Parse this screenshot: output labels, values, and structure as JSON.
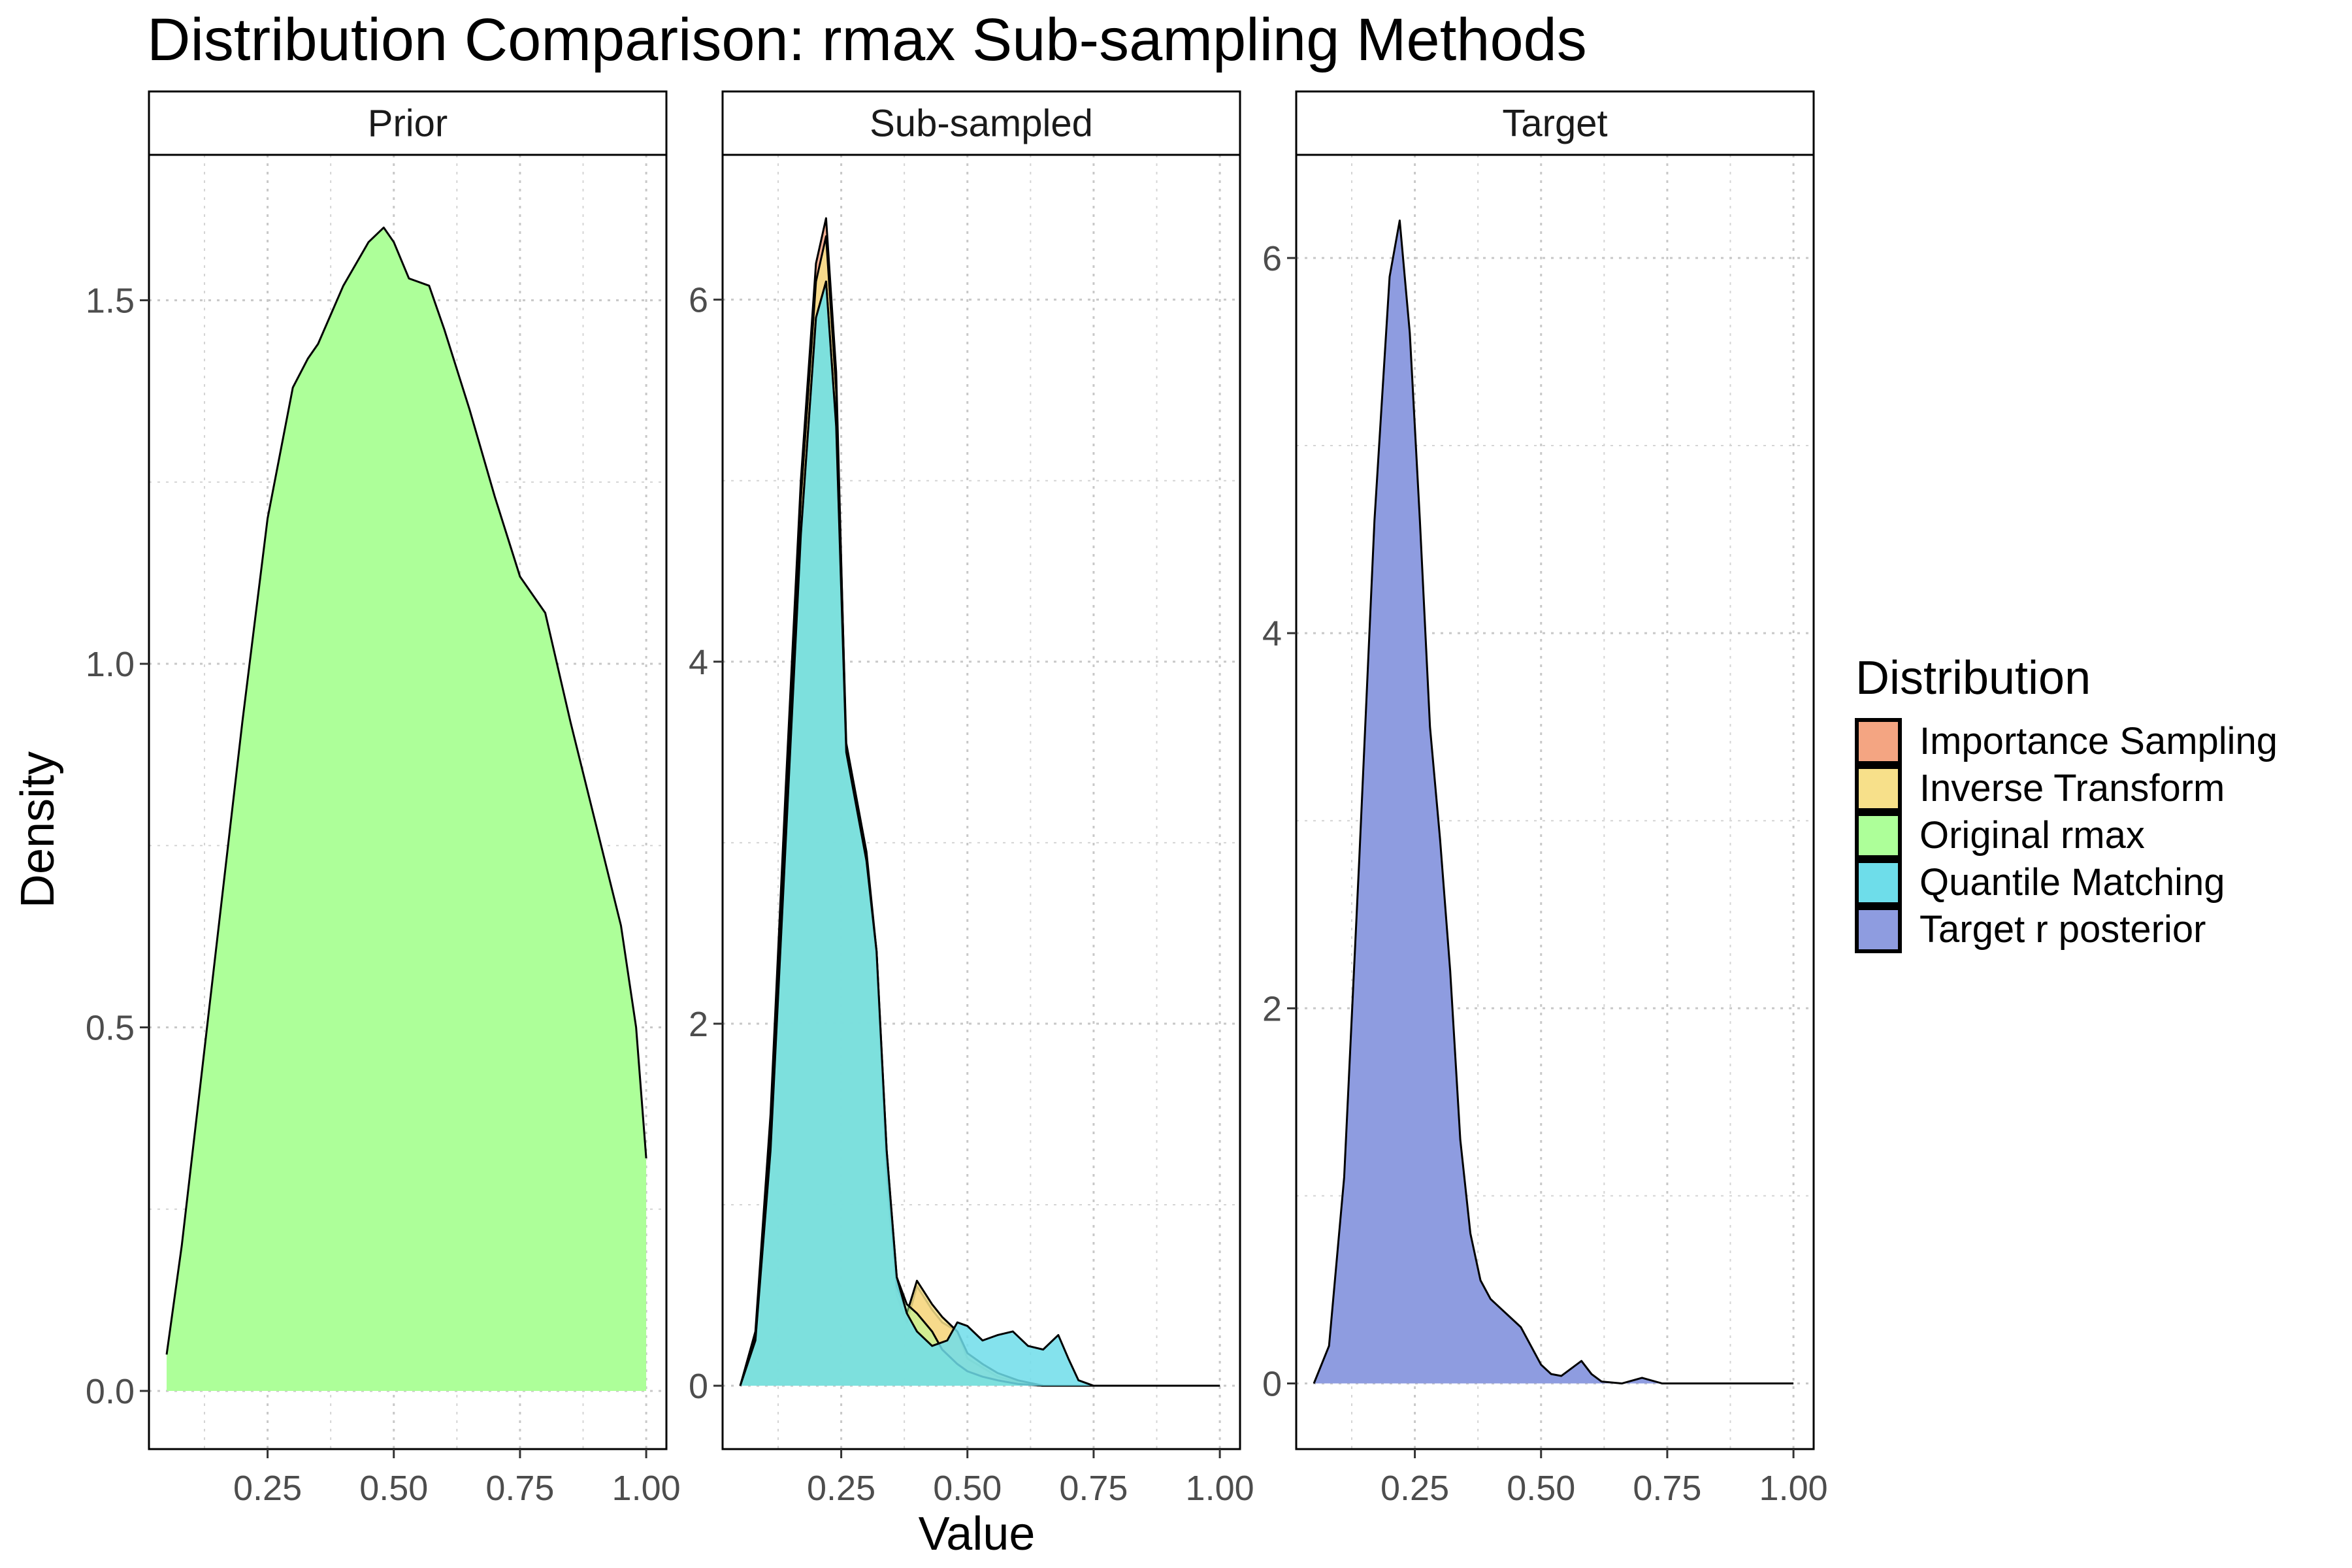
{
  "chart_data": {
    "type": "area",
    "title": "Distribution Comparison: rmax Sub-sampling Methods",
    "xlabel": "Value",
    "ylabel": "Density",
    "grid": true,
    "legend": {
      "title": "Distribution",
      "position": "right",
      "entries": [
        {
          "name": "Importance Sampling",
          "color": "#F4A582"
        },
        {
          "name": "Inverse Transform",
          "color": "#F7E08A"
        },
        {
          "name": "Original rmax",
          "color": "#ADFF99"
        },
        {
          "name": "Quantile Matching",
          "color": "#6EDDEA"
        },
        {
          "name": "Target r posterior",
          "color": "#8E9CE0"
        }
      ]
    },
    "facets": [
      {
        "label": "Prior",
        "xlim": [
          0.015,
          1.04
        ],
        "ylim": [
          -0.08,
          1.7
        ],
        "xticks": [
          0.25,
          0.5,
          0.75,
          1.0
        ],
        "xtick_labels": [
          "0.25",
          "0.50",
          "0.75",
          "1.00"
        ],
        "yticks": [
          0,
          0.5,
          1.0,
          1.5
        ],
        "ytick_labels": [
          "0.0",
          "0.5",
          "1.0",
          "1.5"
        ],
        "series": [
          {
            "name": "Original rmax",
            "color": "#ADFF99",
            "opacity": 1.0,
            "x": [
              0.05,
              0.08,
              0.11,
              0.15,
              0.2,
              0.25,
              0.3,
              0.33,
              0.35,
              0.4,
              0.45,
              0.48,
              0.5,
              0.53,
              0.57,
              0.6,
              0.65,
              0.7,
              0.75,
              0.8,
              0.85,
              0.9,
              0.95,
              0.98,
              1.0
            ],
            "y": [
              0.05,
              0.2,
              0.38,
              0.62,
              0.92,
              1.2,
              1.38,
              1.42,
              1.44,
              1.52,
              1.58,
              1.6,
              1.58,
              1.53,
              1.52,
              1.46,
              1.35,
              1.23,
              1.12,
              1.07,
              0.92,
              0.78,
              0.64,
              0.5,
              0.32
            ]
          }
        ]
      },
      {
        "label": "Sub-sampled",
        "xlim": [
          0.015,
          1.04
        ],
        "ylim": [
          -0.35,
          6.8
        ],
        "xticks": [
          0.25,
          0.5,
          0.75,
          1.0
        ],
        "xtick_labels": [
          "0.25",
          "0.50",
          "0.75",
          "1.00"
        ],
        "yticks": [
          0,
          2,
          4,
          6
        ],
        "ytick_labels": [
          "0",
          "2",
          "4",
          "6"
        ],
        "series": [
          {
            "name": "Importance Sampling",
            "color": "#F4A582",
            "opacity": 0.85,
            "x": [
              0.05,
              0.08,
              0.11,
              0.14,
              0.17,
              0.2,
              0.22,
              0.24,
              0.26,
              0.28,
              0.3,
              0.32,
              0.34,
              0.36,
              0.38,
              0.4,
              0.43,
              0.45,
              0.48,
              0.5,
              0.53,
              0.56,
              0.6,
              0.65,
              0.7,
              0.75,
              0.8,
              0.9,
              1.0
            ],
            "y": [
              0,
              0.3,
              1.5,
              3.3,
              5.0,
              6.2,
              6.45,
              5.6,
              3.5,
              3.2,
              2.9,
              2.3,
              1.1,
              0.5,
              0.35,
              0.55,
              0.42,
              0.35,
              0.3,
              0.15,
              0.1,
              0.05,
              0.02,
              0,
              0,
              0,
              0,
              0,
              0
            ]
          },
          {
            "name": "Inverse Transform",
            "color": "#F7E08A",
            "opacity": 0.85,
            "x": [
              0.05,
              0.08,
              0.11,
              0.14,
              0.17,
              0.2,
              0.22,
              0.24,
              0.26,
              0.28,
              0.3,
              0.32,
              0.34,
              0.36,
              0.38,
              0.4,
              0.43,
              0.45,
              0.48,
              0.5,
              0.53,
              0.56,
              0.6,
              0.65,
              0.7,
              0.75,
              0.8,
              0.9,
              1.0
            ],
            "y": [
              0,
              0.28,
              1.45,
              3.2,
              4.9,
              6.1,
              6.35,
              5.5,
              3.55,
              3.25,
              2.95,
              2.4,
              1.2,
              0.55,
              0.4,
              0.58,
              0.45,
              0.38,
              0.3,
              0.18,
              0.12,
              0.07,
              0.03,
              0,
              0,
              0,
              0,
              0,
              0
            ]
          },
          {
            "name": "Original rmax",
            "color": "#ADFF99",
            "opacity": 0.5,
            "x": [
              0.05,
              0.08,
              0.11,
              0.14,
              0.17,
              0.2,
              0.22,
              0.24,
              0.26,
              0.28,
              0.3,
              0.32,
              0.34,
              0.36,
              0.38,
              0.4,
              0.43,
              0.45,
              0.48,
              0.5,
              0.53,
              0.56,
              0.6,
              0.65,
              0.7,
              0.75,
              0.8,
              0.9,
              1.0
            ],
            "y": [
              0,
              0.25,
              1.3,
              3.0,
              4.7,
              5.9,
              6.1,
              5.3,
              3.5,
              3.2,
              2.9,
              2.4,
              1.3,
              0.6,
              0.45,
              0.4,
              0.3,
              0.2,
              0.12,
              0.08,
              0.05,
              0.03,
              0.01,
              0,
              0,
              0,
              0,
              0,
              0
            ]
          },
          {
            "name": "Quantile Matching",
            "color": "#6EDDEA",
            "opacity": 0.85,
            "x": [
              0.05,
              0.08,
              0.11,
              0.14,
              0.17,
              0.2,
              0.22,
              0.24,
              0.26,
              0.28,
              0.3,
              0.32,
              0.34,
              0.36,
              0.38,
              0.4,
              0.43,
              0.46,
              0.48,
              0.5,
              0.53,
              0.56,
              0.59,
              0.62,
              0.65,
              0.68,
              0.7,
              0.72,
              0.75,
              0.8,
              0.9,
              1.0
            ],
            "y": [
              0,
              0.25,
              1.3,
              3.0,
              4.7,
              5.9,
              6.1,
              5.3,
              3.5,
              3.2,
              2.9,
              2.4,
              1.3,
              0.6,
              0.4,
              0.3,
              0.22,
              0.25,
              0.35,
              0.33,
              0.25,
              0.28,
              0.3,
              0.22,
              0.2,
              0.28,
              0.15,
              0.03,
              0,
              0,
              0,
              0
            ]
          },
          {
            "name": "Target r posterior",
            "color": "#8E9CE0",
            "opacity": 0.0,
            "x": [],
            "y": []
          }
        ]
      },
      {
        "label": "Target",
        "xlim": [
          0.015,
          1.04
        ],
        "ylim": [
          -0.35,
          6.55
        ],
        "xticks": [
          0.25,
          0.5,
          0.75,
          1.0
        ],
        "xtick_labels": [
          "0.25",
          "0.50",
          "0.75",
          "1.00"
        ],
        "yticks": [
          0,
          2,
          4,
          6
        ],
        "ytick_labels": [
          "0",
          "2",
          "4",
          "6"
        ],
        "series": [
          {
            "name": "Target r posterior",
            "color": "#8E9CE0",
            "opacity": 1.0,
            "x": [
              0.05,
              0.08,
              0.11,
              0.14,
              0.17,
              0.2,
              0.22,
              0.24,
              0.26,
              0.28,
              0.3,
              0.32,
              0.34,
              0.36,
              0.38,
              0.4,
              0.42,
              0.44,
              0.46,
              0.48,
              0.5,
              0.52,
              0.54,
              0.56,
              0.58,
              0.6,
              0.62,
              0.66,
              0.7,
              0.74,
              0.8,
              0.9,
              1.0
            ],
            "y": [
              0,
              0.2,
              1.1,
              2.8,
              4.6,
              5.9,
              6.2,
              5.6,
              4.6,
              3.5,
              2.9,
              2.2,
              1.3,
              0.8,
              0.55,
              0.45,
              0.4,
              0.35,
              0.3,
              0.2,
              0.1,
              0.05,
              0.04,
              0.08,
              0.12,
              0.05,
              0.01,
              0,
              0.03,
              0,
              0,
              0,
              0
            ]
          }
        ]
      }
    ]
  }
}
